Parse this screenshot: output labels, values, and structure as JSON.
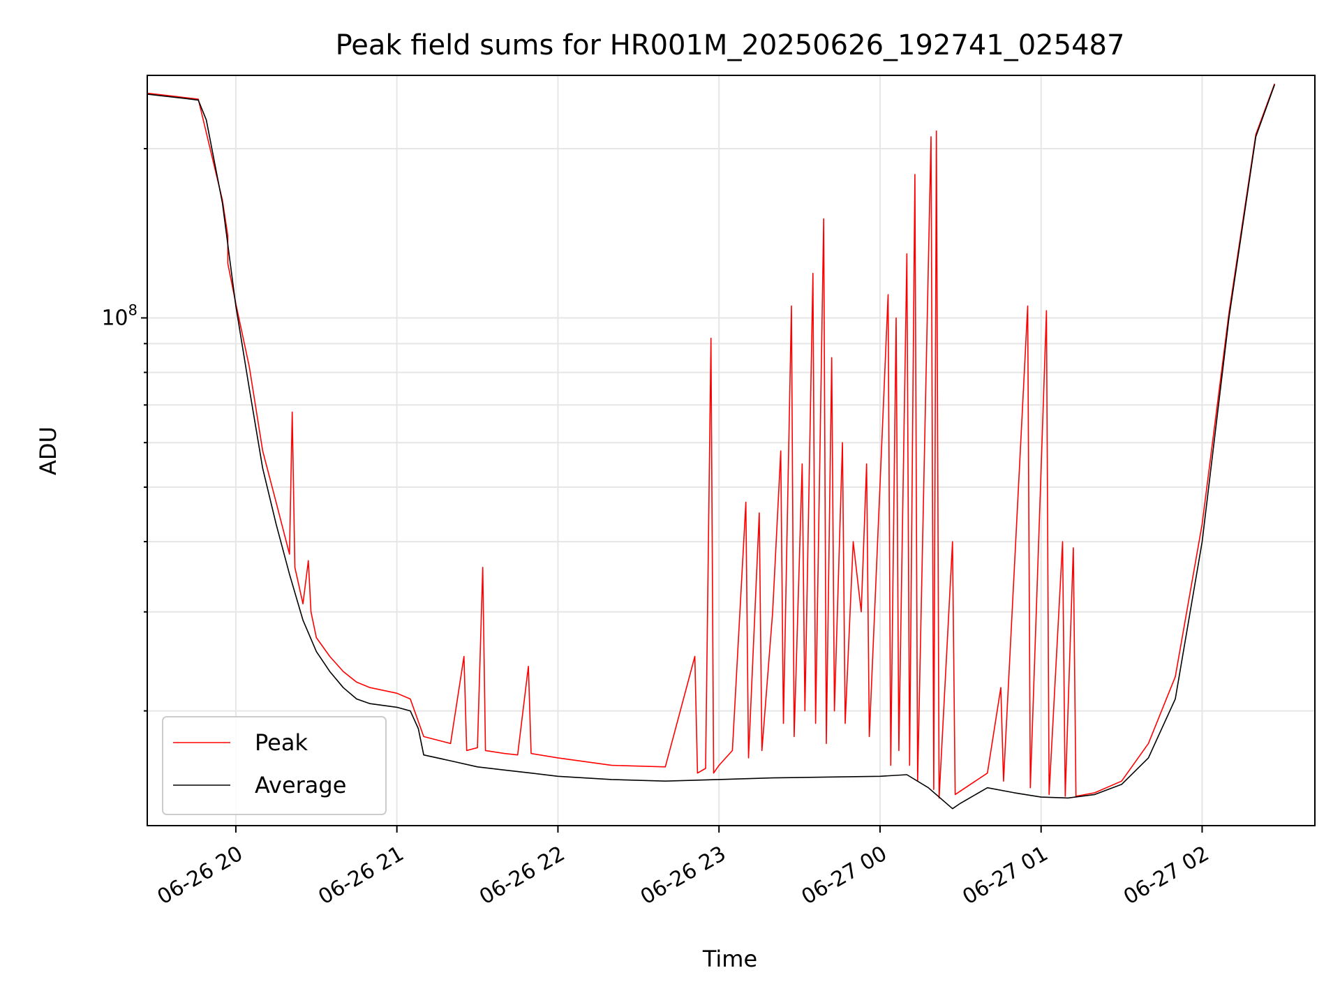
{
  "chart_data": {
    "type": "line",
    "title": "Peak field sums for HR001M_20250626_192741_025487",
    "xlabel": "Time",
    "ylabel": "ADU",
    "y_scale": "log",
    "grid": true,
    "legend_placement": "lower-left",
    "xlim": [
      "2025-06-26 19:27",
      "2025-06-27 02:42"
    ],
    "ylim": [
      12500000,
      270000000
    ],
    "x_ticks": [
      {
        "t": "2025-06-26 20:00",
        "label": "06-26 20"
      },
      {
        "t": "2025-06-26 21:00",
        "label": "06-26 21"
      },
      {
        "t": "2025-06-26 22:00",
        "label": "06-26 22"
      },
      {
        "t": "2025-06-26 23:00",
        "label": "06-26 23"
      },
      {
        "t": "2025-06-27 00:00",
        "label": "06-27 00"
      },
      {
        "t": "2025-06-27 01:00",
        "label": "06-27 01"
      },
      {
        "t": "2025-06-27 02:00",
        "label": "06-27 02"
      }
    ],
    "y_major_ticks": [
      {
        "value": 100000000,
        "label": "10^8"
      }
    ],
    "series": [
      {
        "name": "Average",
        "color": "#000000",
        "points": [
          [
            "2025-06-26 19:27",
            250000000
          ],
          [
            "2025-06-26 19:40",
            246000000
          ],
          [
            "2025-06-26 19:46",
            244000000
          ],
          [
            "2025-06-26 19:49",
            225000000
          ],
          [
            "2025-06-26 19:55",
            160000000
          ],
          [
            "2025-06-26 20:00",
            105000000
          ],
          [
            "2025-06-26 20:05",
            75000000
          ],
          [
            "2025-06-26 20:10",
            54000000
          ],
          [
            "2025-06-26 20:15",
            43000000
          ],
          [
            "2025-06-26 20:20",
            35000000
          ],
          [
            "2025-06-26 20:25",
            29000000
          ],
          [
            "2025-06-26 20:30",
            25500000
          ],
          [
            "2025-06-26 20:35",
            23500000
          ],
          [
            "2025-06-26 20:40",
            22000000
          ],
          [
            "2025-06-26 20:45",
            21000000
          ],
          [
            "2025-06-26 20:50",
            20600000
          ],
          [
            "2025-06-26 21:00",
            20300000
          ],
          [
            "2025-06-26 21:05",
            20000000
          ],
          [
            "2025-06-26 21:08",
            18600000
          ],
          [
            "2025-06-26 21:10",
            16700000
          ],
          [
            "2025-06-26 21:20",
            16300000
          ],
          [
            "2025-06-26 21:30",
            15900000
          ],
          [
            "2025-06-26 21:40",
            15700000
          ],
          [
            "2025-06-26 21:50",
            15500000
          ],
          [
            "2025-06-26 22:00",
            15300000
          ],
          [
            "2025-06-26 22:20",
            15100000
          ],
          [
            "2025-06-26 22:40",
            15000000
          ],
          [
            "2025-06-26 23:00",
            15100000
          ],
          [
            "2025-06-26 23:20",
            15200000
          ],
          [
            "2025-06-26 23:40",
            15250000
          ],
          [
            "2025-06-27 00:00",
            15300000
          ],
          [
            "2025-06-27 00:10",
            15400000
          ],
          [
            "2025-06-27 00:18",
            14600000
          ],
          [
            "2025-06-27 00:27",
            13400000
          ],
          [
            "2025-06-27 00:30",
            13700000
          ],
          [
            "2025-06-27 00:40",
            14600000
          ],
          [
            "2025-06-27 00:50",
            14300000
          ],
          [
            "2025-06-27 01:00",
            14050000
          ],
          [
            "2025-06-27 01:10",
            14000000
          ],
          [
            "2025-06-27 01:20",
            14200000
          ],
          [
            "2025-06-27 01:30",
            14800000
          ],
          [
            "2025-06-27 01:40",
            16500000
          ],
          [
            "2025-06-27 01:50",
            21000000
          ],
          [
            "2025-06-27 02:00",
            40000000
          ],
          [
            "2025-06-27 02:10",
            100000000
          ],
          [
            "2025-06-27 02:20",
            210000000
          ],
          [
            "2025-06-27 02:27",
            260000000
          ]
        ]
      },
      {
        "name": "Peak",
        "color": "#ff0000",
        "points": [
          [
            "2025-06-26 19:27",
            251000000
          ],
          [
            "2025-06-26 19:46",
            245000000
          ],
          [
            "2025-06-26 19:55",
            162000000
          ],
          [
            "2025-06-26 19:57",
            140000000
          ],
          [
            "2025-06-26 19:57",
            125000000
          ],
          [
            "2025-06-26 20:00",
            106000000
          ],
          [
            "2025-06-26 20:05",
            82000000
          ],
          [
            "2025-06-26 20:10",
            58000000
          ],
          [
            "2025-06-26 20:15",
            47000000
          ],
          [
            "2025-06-26 20:20",
            38000000
          ],
          [
            "2025-06-26 20:21",
            68000000
          ],
          [
            "2025-06-26 20:22",
            36000000
          ],
          [
            "2025-06-26 20:25",
            31000000
          ],
          [
            "2025-06-26 20:27",
            37000000
          ],
          [
            "2025-06-26 20:28",
            30000000
          ],
          [
            "2025-06-26 20:30",
            27000000
          ],
          [
            "2025-06-26 20:35",
            25000000
          ],
          [
            "2025-06-26 20:40",
            23500000
          ],
          [
            "2025-06-26 20:45",
            22500000
          ],
          [
            "2025-06-26 20:50",
            22000000
          ],
          [
            "2025-06-26 21:00",
            21500000
          ],
          [
            "2025-06-26 21:05",
            21000000
          ],
          [
            "2025-06-26 21:10",
            18000000
          ],
          [
            "2025-06-26 21:20",
            17500000
          ],
          [
            "2025-06-26 21:25",
            25000000
          ],
          [
            "2025-06-26 21:26",
            17000000
          ],
          [
            "2025-06-26 21:30",
            17200000
          ],
          [
            "2025-06-26 21:32",
            36000000
          ],
          [
            "2025-06-26 21:33",
            17000000
          ],
          [
            "2025-06-26 21:40",
            16800000
          ],
          [
            "2025-06-26 21:45",
            16700000
          ],
          [
            "2025-06-26 21:49",
            24000000
          ],
          [
            "2025-06-26 21:50",
            16800000
          ],
          [
            "2025-06-26 22:00",
            16500000
          ],
          [
            "2025-06-26 22:20",
            16000000
          ],
          [
            "2025-06-26 22:40",
            15900000
          ],
          [
            "2025-06-26 22:51",
            25000000
          ],
          [
            "2025-06-26 22:52",
            15500000
          ],
          [
            "2025-06-26 22:55",
            15800000
          ],
          [
            "2025-06-26 22:57",
            92000000
          ],
          [
            "2025-06-26 22:58",
            15500000
          ],
          [
            "2025-06-26 23:00",
            16000000
          ],
          [
            "2025-06-26 23:05",
            17000000
          ],
          [
            "2025-06-26 23:10",
            47000000
          ],
          [
            "2025-06-26 23:11",
            16500000
          ],
          [
            "2025-06-26 23:15",
            45000000
          ],
          [
            "2025-06-26 23:16",
            17000000
          ],
          [
            "2025-06-26 23:20",
            30000000
          ],
          [
            "2025-06-26 23:23",
            58000000
          ],
          [
            "2025-06-26 23:24",
            19000000
          ],
          [
            "2025-06-26 23:27",
            105000000
          ],
          [
            "2025-06-26 23:28",
            18000000
          ],
          [
            "2025-06-26 23:31",
            55000000
          ],
          [
            "2025-06-26 23:32",
            20000000
          ],
          [
            "2025-06-26 23:35",
            120000000
          ],
          [
            "2025-06-26 23:36",
            19000000
          ],
          [
            "2025-06-26 23:39",
            150000000
          ],
          [
            "2025-06-26 23:40",
            17500000
          ],
          [
            "2025-06-26 23:42",
            85000000
          ],
          [
            "2025-06-26 23:43",
            20000000
          ],
          [
            "2025-06-26 23:46",
            60000000
          ],
          [
            "2025-06-26 23:47",
            19000000
          ],
          [
            "2025-06-26 23:50",
            40000000
          ],
          [
            "2025-06-26 23:53",
            30000000
          ],
          [
            "2025-06-26 23:55",
            55000000
          ],
          [
            "2025-06-26 23:56",
            18000000
          ],
          [
            "2025-06-27 00:03",
            110000000
          ],
          [
            "2025-06-27 00:04",
            16000000
          ],
          [
            "2025-06-27 00:06",
            100000000
          ],
          [
            "2025-06-27 00:07",
            17000000
          ],
          [
            "2025-06-27 00:10",
            130000000
          ],
          [
            "2025-06-27 00:11",
            16000000
          ],
          [
            "2025-06-27 00:13",
            180000000
          ],
          [
            "2025-06-27 00:14",
            15000000
          ],
          [
            "2025-06-27 00:19",
            210000000
          ],
          [
            "2025-06-27 00:20",
            14500000
          ],
          [
            "2025-06-27 00:21",
            215000000
          ],
          [
            "2025-06-27 00:22",
            14000000
          ],
          [
            "2025-06-27 00:27",
            40000000
          ],
          [
            "2025-06-27 00:28",
            14200000
          ],
          [
            "2025-06-27 00:40",
            15500000
          ],
          [
            "2025-06-27 00:45",
            22000000
          ],
          [
            "2025-06-27 00:46",
            15000000
          ],
          [
            "2025-06-27 00:55",
            105000000
          ],
          [
            "2025-06-27 00:56",
            14600000
          ],
          [
            "2025-06-27 01:02",
            103000000
          ],
          [
            "2025-06-27 01:03",
            14200000
          ],
          [
            "2025-06-27 01:08",
            40000000
          ],
          [
            "2025-06-27 01:09",
            14100000
          ],
          [
            "2025-06-27 01:12",
            39000000
          ],
          [
            "2025-06-27 01:13",
            14100000
          ],
          [
            "2025-06-27 01:20",
            14300000
          ],
          [
            "2025-06-27 01:30",
            15000000
          ],
          [
            "2025-06-27 01:40",
            17500000
          ],
          [
            "2025-06-27 01:50",
            23000000
          ],
          [
            "2025-06-27 02:00",
            43000000
          ],
          [
            "2025-06-27 02:10",
            102000000
          ],
          [
            "2025-06-27 02:20",
            212000000
          ],
          [
            "2025-06-27 02:27",
            261000000
          ]
        ]
      }
    ]
  }
}
